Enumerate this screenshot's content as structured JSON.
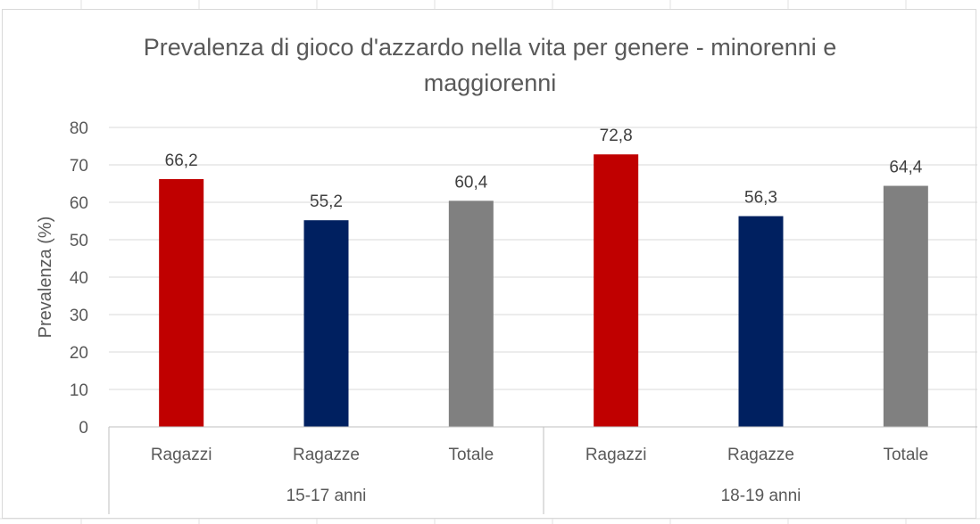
{
  "chart_data": {
    "type": "bar",
    "title": "Prevalenza di gioco d'azzardo nella vita per genere - minorenni e maggiorenni",
    "title_lines": [
      "Prevalenza di gioco d'azzardo nella vita per genere - minorenni e",
      "maggiorenni"
    ],
    "ylabel": "Prevalenza (%)",
    "ylim": [
      0,
      80
    ],
    "yticks": [
      "0",
      "10",
      "20",
      "30",
      "40",
      "50",
      "60",
      "70",
      "80"
    ],
    "grid": true,
    "groups": [
      {
        "label": "15-17 anni",
        "bars": [
          {
            "category": "Ragazzi",
            "value": 66.2,
            "label": "66,2",
            "color": "#c00000"
          },
          {
            "category": "Ragazze",
            "value": 55.2,
            "label": "55,2",
            "color": "#002060"
          },
          {
            "category": "Totale",
            "value": 60.4,
            "label": "60,4",
            "color": "#808080"
          }
        ]
      },
      {
        "label": "18-19 anni",
        "bars": [
          {
            "category": "Ragazzi",
            "value": 72.8,
            "label": "72,8",
            "color": "#c00000"
          },
          {
            "category": "Ragazze",
            "value": 56.3,
            "label": "56,3",
            "color": "#002060"
          },
          {
            "category": "Totale",
            "value": 64.4,
            "label": "64,4",
            "color": "#808080"
          }
        ]
      }
    ]
  }
}
